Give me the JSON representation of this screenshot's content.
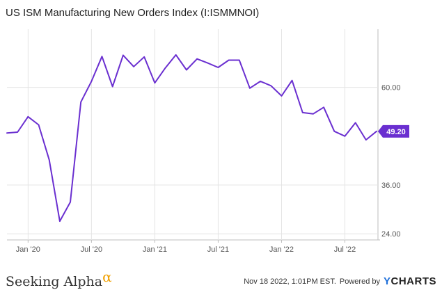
{
  "title": "US ISM Manufacturing New Orders Index (I:ISMMNOI)",
  "chart_data": {
    "type": "line",
    "title": "US ISM Manufacturing New Orders Index (I:ISMMNOI)",
    "x": [
      "2019-11",
      "2019-12",
      "2020-01",
      "2020-02",
      "2020-03",
      "2020-04",
      "2020-05",
      "2020-06",
      "2020-07",
      "2020-08",
      "2020-09",
      "2020-10",
      "2020-11",
      "2020-12",
      "2021-01",
      "2021-02",
      "2021-03",
      "2021-04",
      "2021-05",
      "2021-06",
      "2021-07",
      "2021-08",
      "2021-09",
      "2021-10",
      "2021-11",
      "2021-12",
      "2022-01",
      "2022-02",
      "2022-03",
      "2022-04",
      "2022-05",
      "2022-06",
      "2022-07",
      "2022-08",
      "2022-09",
      "2022-10"
    ],
    "series": [
      {
        "values": [
          48.8,
          49.0,
          52.8,
          50.8,
          42.2,
          27.1,
          31.8,
          56.4,
          61.5,
          67.6,
          60.2,
          67.9,
          65.1,
          67.5,
          61.1,
          64.8,
          68.0,
          64.3,
          67.0,
          66.0,
          64.9,
          66.7,
          66.7,
          59.8,
          61.5,
          60.4,
          57.9,
          61.7,
          53.8,
          53.5,
          55.1,
          49.2,
          48.0,
          51.3,
          47.1,
          49.2
        ]
      }
    ],
    "last_value_label": "49.20",
    "x_tick_labels": [
      "Jan '20",
      "Jul '20",
      "Jan '21",
      "Jul '21",
      "Jan '22",
      "Jul '22"
    ],
    "y_tick_labels": [
      "24.00",
      "36.00",
      "60.00"
    ],
    "ylim": [
      22.5,
      74.3
    ],
    "grid": true,
    "line_color": "#6a2fd0"
  },
  "footer": {
    "brand_text": "Seeking Alpha",
    "brand_symbol": "α",
    "timestamp": "Nov 18 2022, 1:01PM EST.",
    "powered_by": "Powered by",
    "ycharts_y": "Y",
    "ycharts_rest": "CHARTS"
  }
}
